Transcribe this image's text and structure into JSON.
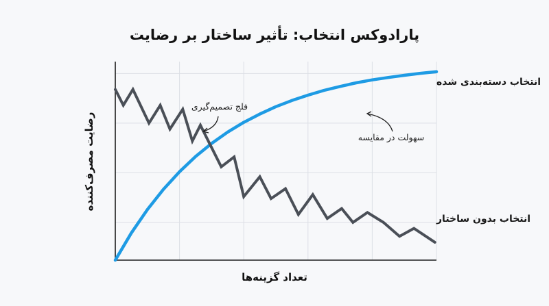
{
  "chart_data": {
    "type": "line",
    "title": "پارادوکس انتخاب: تأثیر ساختار بر رضایت",
    "xlabel": "تعداد گزینه‌ها",
    "ylabel": "رضایت مصرف‌کننده",
    "xlim": [
      0,
      10
    ],
    "ylim": [
      0,
      10
    ],
    "grid": true,
    "series": [
      {
        "name": "انتخاب دسته‌بندی شده",
        "color": "#1e9be4",
        "x": [
          0,
          0.5,
          1,
          1.5,
          2,
          2.5,
          3,
          3.5,
          4,
          4.5,
          5,
          5.5,
          6,
          6.5,
          7,
          7.5,
          8,
          8.5,
          9,
          9.5,
          10
        ],
        "y": [
          0.0,
          1.37,
          2.55,
          3.57,
          4.45,
          5.22,
          5.88,
          6.45,
          6.94,
          7.36,
          7.73,
          8.04,
          8.31,
          8.55,
          8.75,
          8.93,
          9.08,
          9.2,
          9.31,
          9.41,
          9.49
        ]
      },
      {
        "name": "انتخاب بدون ساختار",
        "color": "#4a4f57",
        "x": [
          0,
          0.25,
          0.55,
          1.05,
          1.4,
          1.7,
          2.1,
          2.4,
          2.65,
          3.3,
          3.7,
          4.0,
          4.5,
          4.85,
          5.3,
          5.7,
          6.15,
          6.6,
          7.05,
          7.4,
          7.85,
          8.35,
          8.85,
          9.3,
          9.95
        ],
        "y": [
          8.6,
          7.8,
          8.6,
          6.9,
          7.8,
          6.6,
          7.6,
          6.0,
          6.8,
          4.7,
          5.2,
          3.2,
          4.2,
          3.1,
          3.6,
          2.3,
          3.3,
          2.1,
          2.6,
          1.9,
          2.4,
          1.9,
          1.2,
          1.6,
          0.9
        ]
      }
    ],
    "annotations": [
      {
        "text": "فلج تصمیم‌گیری",
        "x": 2.65,
        "y": 6.8
      },
      {
        "text": "سهولت در مقایسه",
        "x": 7.9,
        "y": 8.9
      }
    ]
  },
  "colors": {
    "background": "#f7f8fa",
    "grid": "#dcdfe5",
    "axis": "#1c1c1c"
  }
}
